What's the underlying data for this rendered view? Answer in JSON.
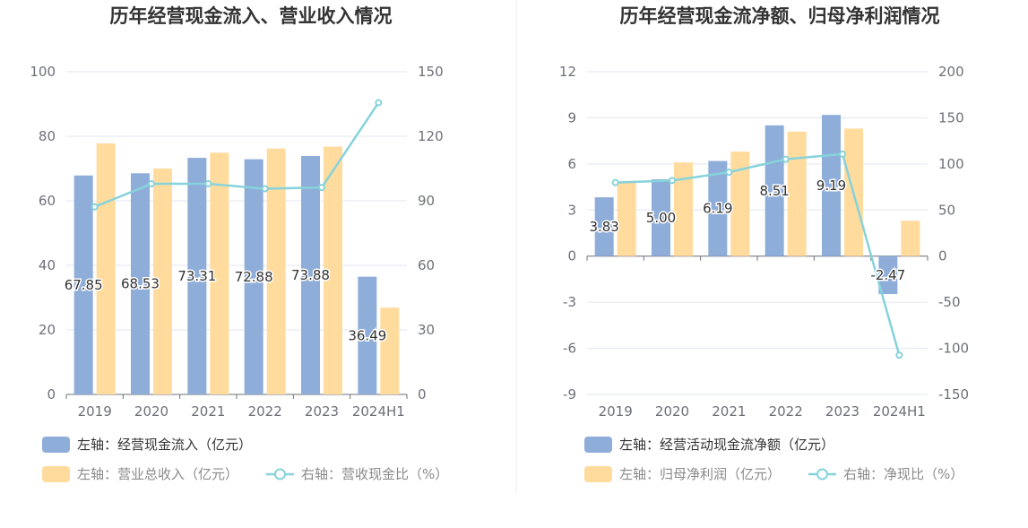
{
  "chart_data": [
    {
      "type": "bar",
      "title": "历年经营现金流入、营业收入情况",
      "categories": [
        "2019",
        "2020",
        "2021",
        "2022",
        "2023",
        "2024H1"
      ],
      "left_axis": {
        "ylim": [
          0,
          100
        ],
        "ticks": [
          "100",
          "80",
          "60",
          "40",
          "20",
          "0"
        ]
      },
      "right_axis": {
        "ylim": [
          0,
          150
        ],
        "ticks": [
          "150",
          "120",
          "90",
          "60",
          "30",
          "0"
        ]
      },
      "series": [
        {
          "name": "左轴：经营现金流入（亿元）",
          "kind": "bar",
          "axis": "left",
          "color": "#8fadd9",
          "values": [
            67.85,
            68.53,
            73.31,
            72.88,
            73.88,
            36.49
          ],
          "labels": [
            "67.85",
            "68.53",
            "73.31",
            "72.88",
            "73.88",
            "36.49"
          ]
        },
        {
          "name": "左轴：营业总收入（亿元）",
          "kind": "bar",
          "axis": "left",
          "color": "#ffdb9e",
          "values": [
            77.8,
            70.0,
            74.9,
            76.2,
            76.8,
            26.9
          ]
        },
        {
          "name": "右轴：营收现金比（%）",
          "kind": "line",
          "axis": "right",
          "color": "#86d3db",
          "values": [
            87.2,
            97.9,
            97.9,
            95.6,
            96.2,
            135.6
          ]
        }
      ]
    },
    {
      "type": "bar",
      "title": "历年经营现金流净额、归母净利润情况",
      "categories": [
        "2019",
        "2020",
        "2021",
        "2022",
        "2023",
        "2024H1"
      ],
      "left_axis": {
        "ylim": [
          -9,
          12
        ],
        "ticks": [
          "12",
          "9",
          "6",
          "3",
          "0",
          "-3",
          "-6",
          "-9"
        ]
      },
      "right_axis": {
        "ylim": [
          -150,
          200
        ],
        "ticks": [
          "200",
          "150",
          "100",
          "50",
          "0",
          "-50",
          "-100",
          "-150"
        ]
      },
      "series": [
        {
          "name": "左轴：经营活动现金流净额（亿元）",
          "kind": "bar",
          "axis": "left",
          "color": "#8fadd9",
          "values": [
            3.83,
            5.0,
            6.19,
            8.51,
            9.19,
            -2.47
          ],
          "labels": [
            "3.83",
            "5.00",
            "6.19",
            "8.51",
            "9.19",
            "-2.47"
          ]
        },
        {
          "name": "左轴：归母净利润（亿元）",
          "kind": "bar",
          "axis": "left",
          "color": "#ffdb9e",
          "values": [
            4.8,
            6.1,
            6.8,
            8.1,
            8.3,
            2.3
          ]
        },
        {
          "name": "右轴：净现比（%）",
          "kind": "line",
          "axis": "right",
          "color": "#86d3db",
          "values": [
            79.8,
            82.0,
            91.0,
            105.1,
            110.7,
            -107.4
          ]
        }
      ]
    }
  ]
}
